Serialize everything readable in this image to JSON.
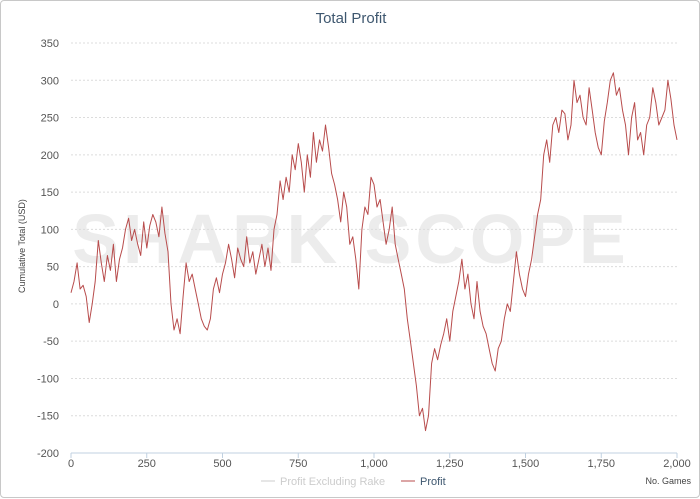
{
  "chart_data": {
    "type": "line",
    "title": "Total Profit",
    "ylabel": "Cumulative Total (USD)",
    "xlabel": "No. Games",
    "xlim": [
      0,
      2000
    ],
    "ylim": [
      -200,
      350
    ],
    "xticks": [
      0,
      250,
      500,
      750,
      1000,
      1250,
      1500,
      1750,
      2000
    ],
    "xtick_labels": [
      "0",
      "250",
      "500",
      "750",
      "1,000",
      "1,250",
      "1,500",
      "1,750",
      "2,000"
    ],
    "yticks": [
      -200,
      -150,
      -100,
      -50,
      0,
      50,
      100,
      150,
      200,
      250,
      300,
      350
    ],
    "ytick_labels": [
      "-200",
      "-150",
      "-100",
      "-50",
      "0",
      "50",
      "100",
      "150",
      "200",
      "250",
      "300",
      "350"
    ],
    "grid": true,
    "legend": [
      {
        "name": "Profit Excluding Rake",
        "color": "#cccccc",
        "text_color": "#cccccc"
      },
      {
        "name": "Profit",
        "color": "#b84c4c",
        "text_color": "#3e576f"
      }
    ],
    "watermark": "SHARK SCOPE",
    "series": [
      {
        "name": "Profit",
        "color": "#b84c4c",
        "x": [
          0,
          10,
          20,
          30,
          40,
          50,
          60,
          70,
          80,
          90,
          100,
          110,
          120,
          130,
          140,
          150,
          160,
          170,
          180,
          190,
          200,
          210,
          220,
          230,
          240,
          250,
          260,
          270,
          280,
          290,
          300,
          310,
          320,
          330,
          340,
          350,
          360,
          370,
          380,
          390,
          400,
          410,
          420,
          430,
          440,
          450,
          460,
          470,
          480,
          490,
          500,
          510,
          520,
          530,
          540,
          550,
          560,
          570,
          580,
          590,
          600,
          610,
          620,
          630,
          640,
          650,
          660,
          670,
          680,
          690,
          700,
          710,
          720,
          730,
          740,
          750,
          760,
          770,
          780,
          790,
          800,
          810,
          820,
          830,
          840,
          850,
          860,
          870,
          880,
          890,
          900,
          910,
          920,
          930,
          940,
          950,
          960,
          970,
          980,
          990,
          1000,
          1010,
          1020,
          1030,
          1040,
          1050,
          1060,
          1070,
          1080,
          1090,
          1100,
          1110,
          1120,
          1130,
          1140,
          1150,
          1160,
          1170,
          1180,
          1190,
          1200,
          1210,
          1220,
          1230,
          1240,
          1250,
          1260,
          1270,
          1280,
          1290,
          1300,
          1310,
          1320,
          1330,
          1340,
          1350,
          1360,
          1370,
          1380,
          1390,
          1400,
          1410,
          1420,
          1430,
          1440,
          1450,
          1460,
          1470,
          1480,
          1490,
          1500,
          1510,
          1520,
          1530,
          1540,
          1550,
          1560,
          1570,
          1580,
          1590,
          1600,
          1610,
          1620,
          1630,
          1640,
          1650,
          1660,
          1670,
          1680,
          1690,
          1700,
          1710,
          1720,
          1730,
          1740,
          1750,
          1760,
          1770,
          1780,
          1790,
          1800,
          1810,
          1820,
          1830,
          1840,
          1850,
          1860,
          1870,
          1880,
          1890,
          1900,
          1910,
          1920,
          1930,
          1940,
          1950,
          1960,
          1970,
          1980,
          1990,
          2000
        ],
        "values": [
          15,
          30,
          55,
          20,
          25,
          10,
          -25,
          0,
          30,
          85,
          55,
          30,
          65,
          45,
          80,
          30,
          60,
          75,
          100,
          115,
          85,
          100,
          80,
          65,
          110,
          75,
          105,
          120,
          110,
          90,
          130,
          95,
          70,
          0,
          -35,
          -20,
          -40,
          10,
          55,
          30,
          40,
          20,
          0,
          -20,
          -30,
          -35,
          -20,
          20,
          35,
          15,
          40,
          55,
          80,
          60,
          35,
          75,
          60,
          50,
          90,
          55,
          70,
          40,
          60,
          80,
          50,
          75,
          45,
          100,
          120,
          165,
          140,
          170,
          150,
          200,
          180,
          215,
          190,
          150,
          200,
          170,
          230,
          190,
          220,
          205,
          240,
          210,
          175,
          160,
          140,
          110,
          150,
          130,
          80,
          90,
          60,
          20,
          100,
          130,
          120,
          170,
          160,
          130,
          140,
          110,
          80,
          100,
          130,
          80,
          60,
          40,
          20,
          -20,
          -50,
          -80,
          -110,
          -150,
          -140,
          -170,
          -150,
          -80,
          -60,
          -75,
          -55,
          -40,
          -20,
          -50,
          -10,
          10,
          30,
          60,
          20,
          40,
          0,
          -20,
          30,
          -10,
          -30,
          -40,
          -60,
          -80,
          -90,
          -60,
          -50,
          -20,
          0,
          -10,
          30,
          70,
          40,
          20,
          10,
          40,
          60,
          90,
          120,
          140,
          200,
          220,
          190,
          240,
          250,
          230,
          260,
          255,
          220,
          240,
          300,
          270,
          280,
          250,
          240,
          290,
          260,
          230,
          210,
          200,
          245,
          270,
          300,
          310,
          280,
          290,
          260,
          240,
          200,
          250,
          270,
          220,
          230,
          200,
          240,
          250,
          290,
          270,
          240,
          250,
          260,
          300,
          275,
          240,
          220
        ]
      }
    ]
  }
}
